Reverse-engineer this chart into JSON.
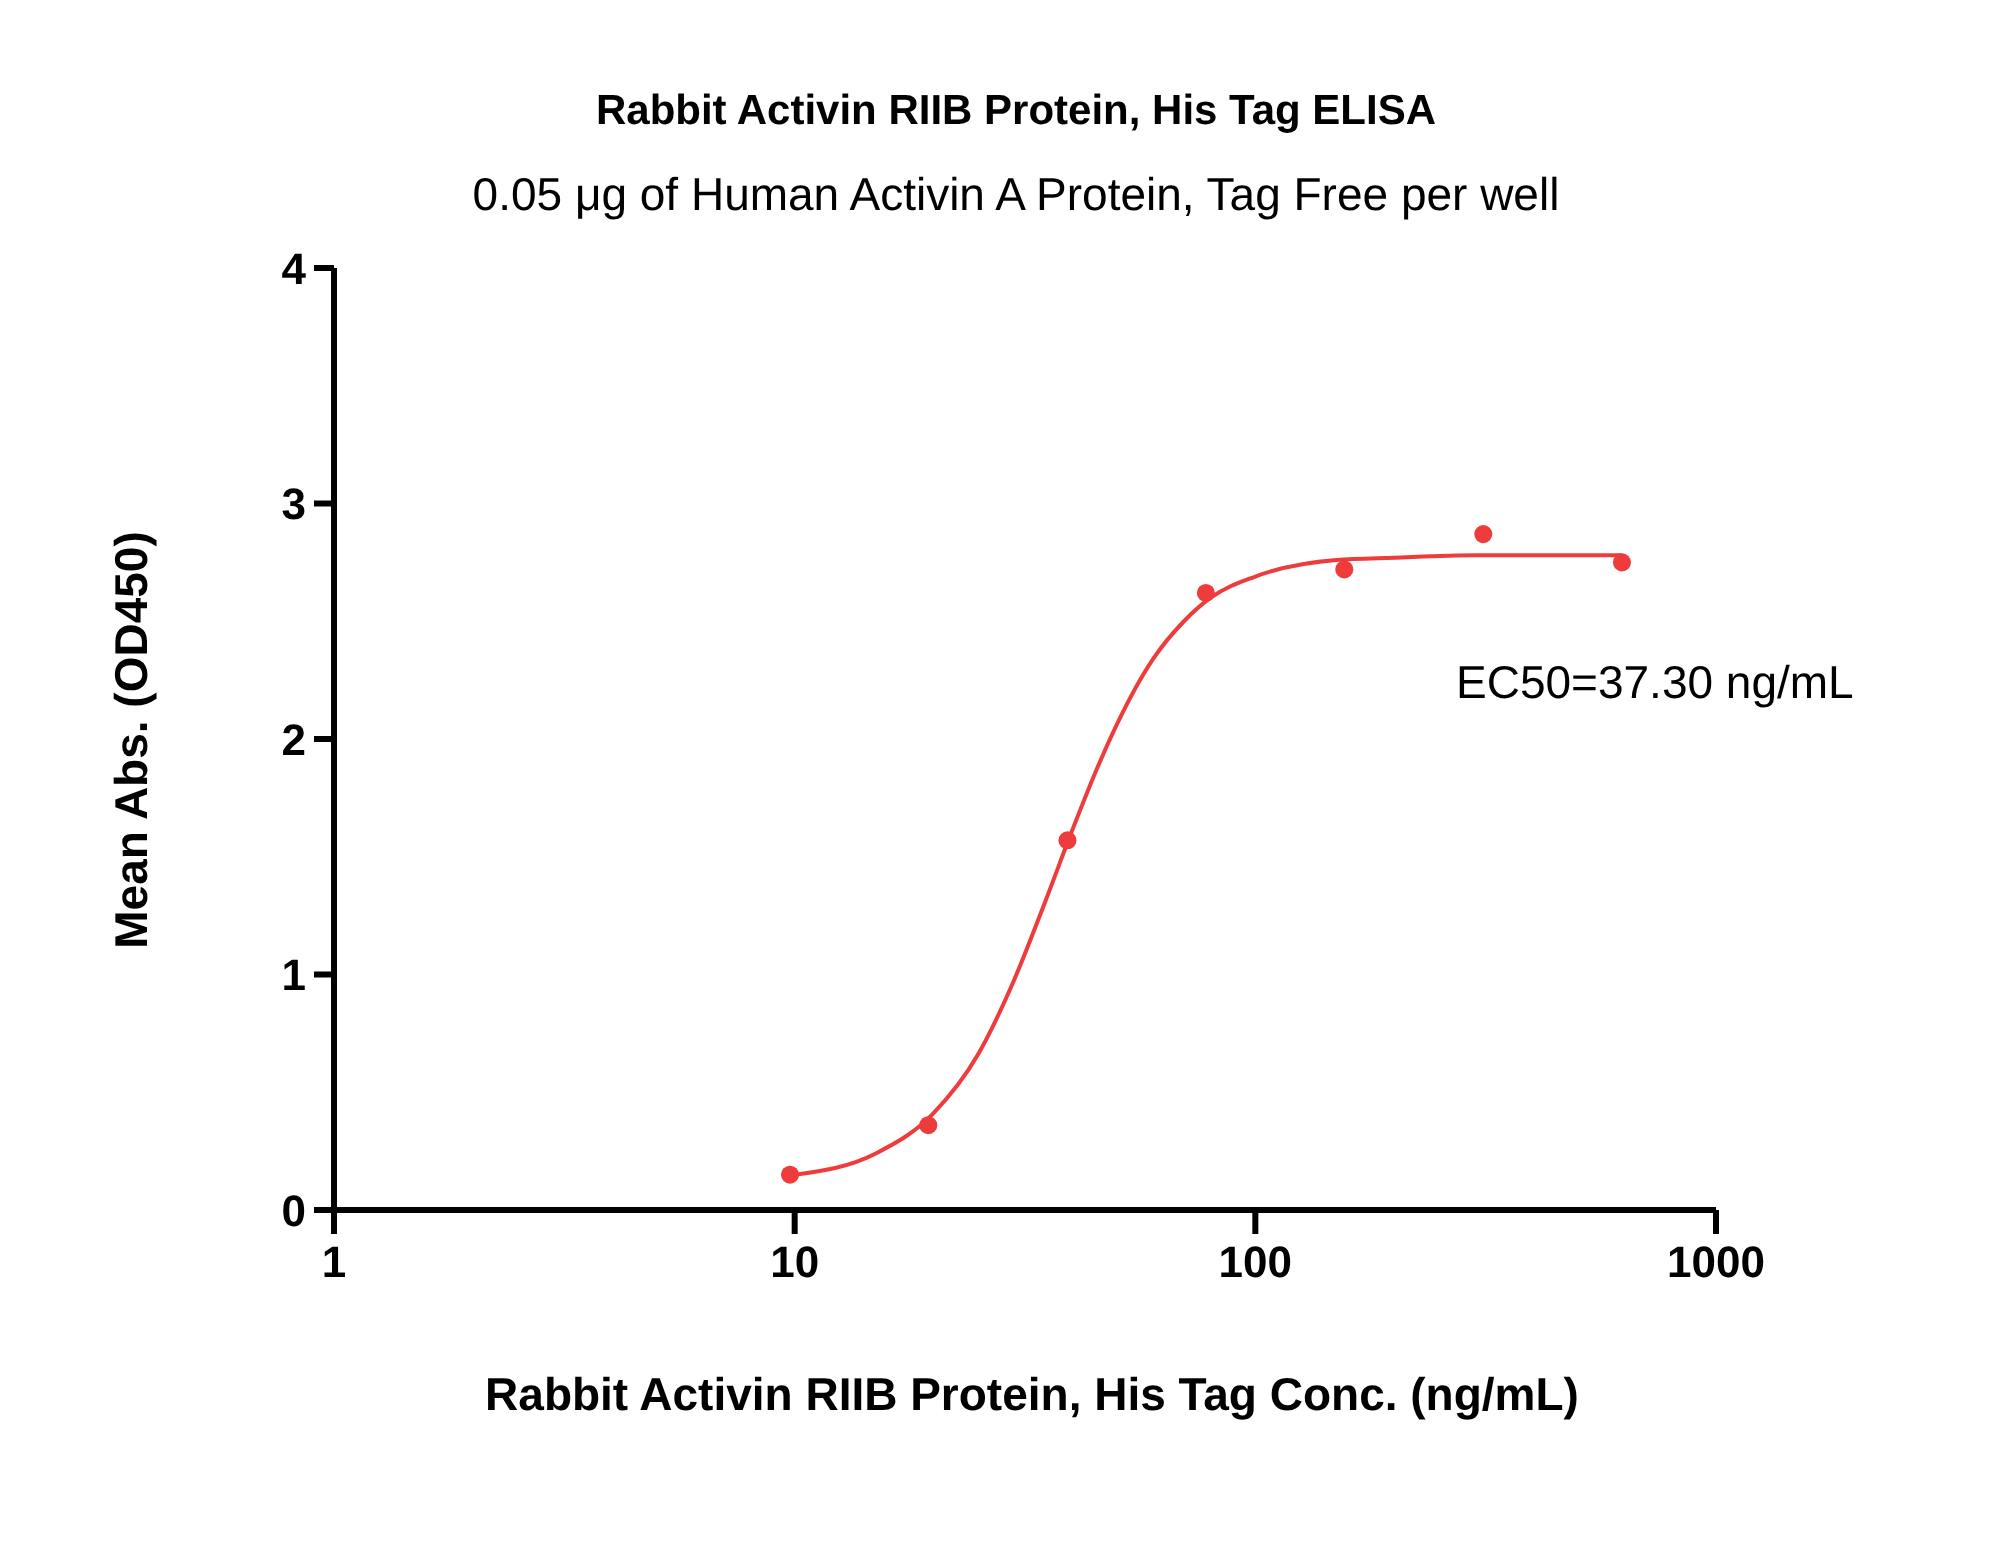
{
  "chart_data": {
    "type": "scatter",
    "title": "Rabbit Activin RIIB Protein, His Tag ELISA",
    "subtitle": "0.05 μg of Human Activin A Protein, Tag Free per well",
    "xlabel": "Rabbit Activin RIIB Protein, His Tag Conc. (ng/mL)",
    "ylabel": "Mean Abs. (OD450)",
    "annotations": [
      "EC50=37.30 ng/mL"
    ],
    "x": [
      9.77,
      19.5,
      39.1,
      78.1,
      156,
      312.5,
      625
    ],
    "log": "x",
    "grid": false,
    "legend": false,
    "marker": "circle",
    "xlim": [
      1,
      1000
    ],
    "xticks": [
      1,
      10,
      100,
      1000
    ],
    "ylim": [
      0,
      4
    ],
    "yticks": [
      0,
      1,
      2,
      3,
      4
    ],
    "series": [
      {
        "color": "#ee3b3b",
        "values": [
          0.15,
          0.36,
          1.57,
          2.62,
          2.72,
          2.87,
          2.75
        ]
      },
      {
        "type": "line",
        "marker": "none",
        "color": "#ee3b3b",
        "x": [
          10,
          15,
          20,
          25,
          30,
          35,
          40,
          45,
          50,
          60,
          70,
          80,
          100,
          150,
          200,
          300,
          450,
          625
        ],
        "values": [
          0.15,
          0.24,
          0.41,
          0.66,
          0.98,
          1.31,
          1.61,
          1.86,
          2.06,
          2.34,
          2.5,
          2.6,
          2.69,
          2.76,
          2.77,
          2.78,
          2.78,
          2.78
        ]
      }
    ]
  }
}
